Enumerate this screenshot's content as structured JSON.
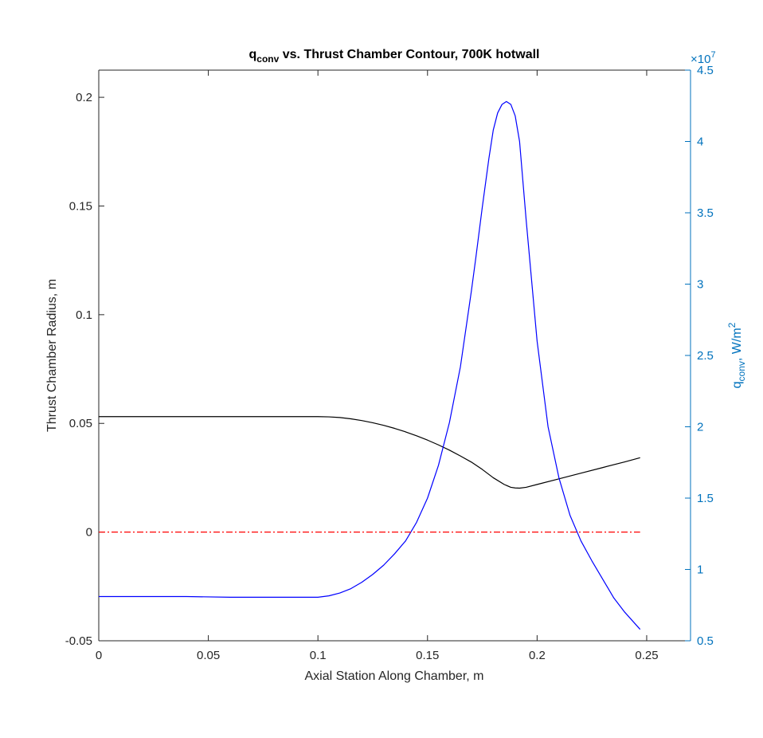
{
  "chart_data": {
    "type": "line",
    "title_main": "q",
    "title_sub": "conv",
    "title_rest": " vs. Thrust Chamber Contour, 700K hotwall",
    "xlabel": "Axial Station Along Chamber, m",
    "ylabel_left": "Thrust Chamber Radius, m",
    "ylabel_right_main": "q",
    "ylabel_right_sub": "conv",
    "ylabel_right_unit": ", W/m",
    "ylabel_right_sup": "2",
    "right_exponent_base": "×10",
    "right_exponent_power": "7",
    "xlim": [
      0,
      0.27
    ],
    "ylim_left": [
      -0.05,
      0.2125
    ],
    "ylim_right": [
      5000000,
      45000000
    ],
    "x_ticks": [
      0,
      0.05,
      0.1,
      0.15,
      0.2,
      0.25
    ],
    "x_tick_labels": [
      "0",
      "0.05",
      "0.1",
      "0.15",
      "0.2",
      "0.25"
    ],
    "y_left_ticks": [
      -0.05,
      0,
      0.05,
      0.1,
      0.15,
      0.2
    ],
    "y_left_tick_labels": [
      "-0.05",
      "0",
      "0.05",
      "0.1",
      "0.15",
      "0.2"
    ],
    "y_right_ticks": [
      5000000,
      10000000,
      15000000,
      20000000,
      25000000,
      30000000,
      35000000,
      40000000,
      45000000
    ],
    "y_right_tick_labels": [
      "0.5",
      "1",
      "1.5",
      "2",
      "2.5",
      "3",
      "3.5",
      "4",
      "4.5"
    ],
    "colors": {
      "contour": "#000000",
      "heat_flux": "#0000ff",
      "centerline": "#ff0000",
      "right_axis": "#0072bd",
      "axes": "#262626"
    },
    "series": [
      {
        "axis": "left",
        "style": "solid",
        "color": "#000000",
        "x": [
          0,
          0.02,
          0.04,
          0.06,
          0.08,
          0.1,
          0.105,
          0.11,
          0.115,
          0.12,
          0.125,
          0.13,
          0.135,
          0.14,
          0.145,
          0.15,
          0.155,
          0.16,
          0.165,
          0.17,
          0.175,
          0.18,
          0.185,
          0.188,
          0.19,
          0.192,
          0.195,
          0.2,
          0.21,
          0.22,
          0.23,
          0.24,
          0.247
        ],
        "values": [
          0.0531,
          0.0531,
          0.0531,
          0.0531,
          0.0531,
          0.0531,
          0.053,
          0.0527,
          0.0521,
          0.0513,
          0.0503,
          0.0491,
          0.0477,
          0.0461,
          0.0443,
          0.0423,
          0.0401,
          0.0377,
          0.035,
          0.0322,
          0.0288,
          0.025,
          0.0219,
          0.0206,
          0.0203,
          0.0202,
          0.0206,
          0.0219,
          0.0245,
          0.0271,
          0.0297,
          0.0323,
          0.0342
        ]
      },
      {
        "axis": "right",
        "style": "solid",
        "color": "#0000ff",
        "x": [
          0,
          0.02,
          0.04,
          0.06,
          0.08,
          0.1,
          0.105,
          0.11,
          0.115,
          0.12,
          0.125,
          0.13,
          0.135,
          0.14,
          0.145,
          0.15,
          0.155,
          0.16,
          0.165,
          0.17,
          0.172,
          0.175,
          0.178,
          0.18,
          0.182,
          0.184,
          0.186,
          0.188,
          0.19,
          0.192,
          0.195,
          0.2,
          0.205,
          0.21,
          0.215,
          0.22,
          0.225,
          0.23,
          0.235,
          0.24,
          0.247
        ],
        "values": [
          8100000,
          8100000,
          8100000,
          8050000,
          8050000,
          8050000,
          8150000,
          8350000,
          8650000,
          9100000,
          9650000,
          10300000,
          11100000,
          12000000,
          13300000,
          15000000,
          17300000,
          20300000,
          24200000,
          29500000,
          31800000,
          35400000,
          38800000,
          40800000,
          42000000,
          42600000,
          42800000,
          42600000,
          41800000,
          40000000,
          34500000,
          26000000,
          20000000,
          16400000,
          13800000,
          12000000,
          10600000,
          9300000,
          8000000,
          7000000,
          5800000
        ]
      },
      {
        "axis": "left",
        "style": "dash-dot",
        "color": "#ff0000",
        "x": [
          0,
          0.247
        ],
        "values": [
          0,
          0
        ]
      }
    ]
  }
}
